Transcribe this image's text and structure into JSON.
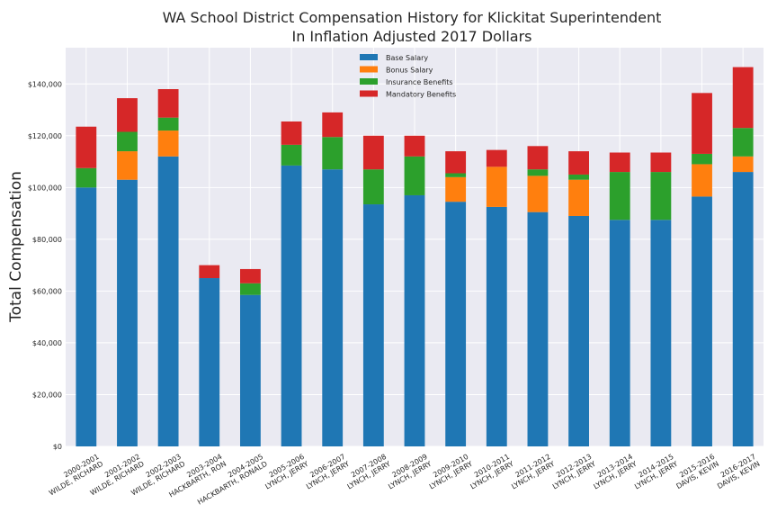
{
  "chart_data": {
    "type": "bar",
    "stacked": true,
    "title": "WA School District Compensation History for Klickitat Superintendent",
    "subtitle": "In Inflation Adjusted 2017 Dollars",
    "xlabel": "",
    "ylabel": "Total Compensation",
    "ylim": [
      0,
      154000
    ],
    "yticks": [
      0,
      20000,
      40000,
      60000,
      80000,
      100000,
      120000,
      140000
    ],
    "ytick_labels": [
      "$0",
      "$20,000",
      "$40,000",
      "$60,000",
      "$80,000",
      "$100,000",
      "$120,000",
      "$140,000"
    ],
    "grid": true,
    "legend_position": "top-center",
    "categories": [
      "2000-2001\nWILDE, RICHARD",
      "2001-2002\nWILDE, RICHARD",
      "2002-2003\nWILDE, RICHARD",
      "2003-2004\nHACKBARTH, RON",
      "2004-2005\nHACKBARTH, RONALD",
      "2005-2006\nLYNCH, JERRY",
      "2006-2007\nLYNCH, JERRY",
      "2007-2008\nLYNCH, JERRY",
      "2008-2009\nLYNCH, JERRY",
      "2009-2010\nLYNCH, JERRY",
      "2010-2011\nLYNCH, JERRY",
      "2011-2012\nLYNCH, JERRY",
      "2012-2013\nLYNCH, JERRY",
      "2013-2014\nLYNCH, JERRY",
      "2014-2015\nLYNCH, JERRY",
      "2015-2016\nDAVIS, KEVIN",
      "2016-2017\nDAVIS, KEVIN"
    ],
    "series": [
      {
        "name": "Base Salary",
        "color": "#1f77b4",
        "values": [
          100000,
          103000,
          112000,
          65000,
          58500,
          108500,
          107000,
          93500,
          97000,
          94500,
          92500,
          90500,
          89000,
          87500,
          87500,
          96500,
          106000
        ]
      },
      {
        "name": "Bonus Salary",
        "color": "#ff7f0e",
        "values": [
          0,
          11000,
          10000,
          0,
          0,
          0,
          0,
          0,
          0,
          9500,
          15500,
          14000,
          14000,
          0,
          0,
          12500,
          6000
        ]
      },
      {
        "name": "Insurance Benefits",
        "color": "#2ca02c",
        "values": [
          7500,
          7500,
          5000,
          0,
          4500,
          8000,
          12500,
          13500,
          15000,
          1500,
          0,
          2500,
          2000,
          18500,
          18500,
          4000,
          11000
        ]
      },
      {
        "name": "Mandatory Benefits",
        "color": "#d62728",
        "values": [
          16000,
          13000,
          11000,
          5000,
          5500,
          9000,
          9500,
          13000,
          8000,
          8500,
          6500,
          9000,
          9000,
          7500,
          7500,
          23500,
          23500
        ]
      }
    ]
  }
}
